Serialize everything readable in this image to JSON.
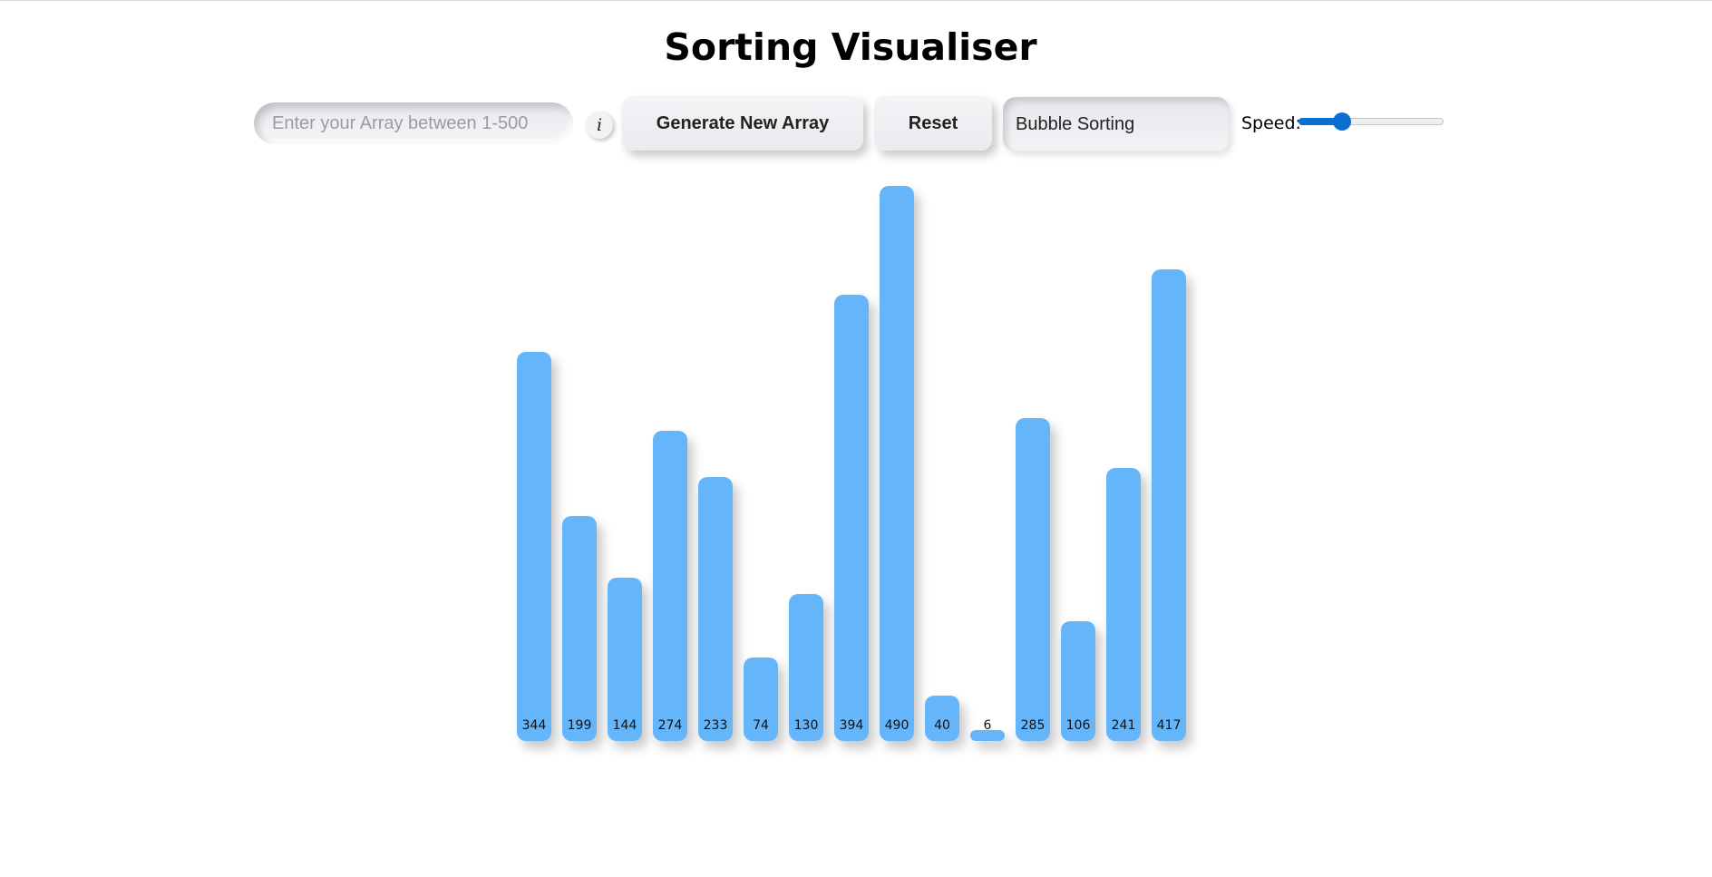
{
  "page": {
    "title": "Sorting Visualiser"
  },
  "controls": {
    "array_input_placeholder": "Enter your Array between 1-500",
    "array_input_value": "",
    "info_label": "i",
    "generate_label": "Generate New Array",
    "reset_label": "Reset",
    "algorithm_selected": "Bubble Sorting",
    "speed_label": "Speed:",
    "speed_value": 0.3
  },
  "colors": {
    "bar": "#64b5f9",
    "slider_accent": "#0b6fd1"
  },
  "chart_data": {
    "type": "bar",
    "values": [
      344,
      199,
      144,
      274,
      233,
      74,
      130,
      394,
      490,
      40,
      6,
      285,
      106,
      241,
      417
    ],
    "ylim": [
      0,
      500
    ]
  }
}
